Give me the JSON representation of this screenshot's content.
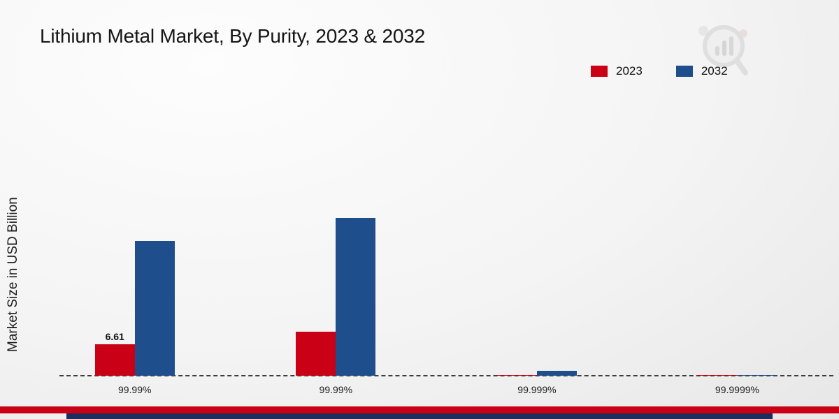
{
  "header": {
    "title": "Lithium Metal Market, By Purity, 2023 & 2032"
  },
  "legend": {
    "items": [
      {
        "label": "2023",
        "color": "#c90016"
      },
      {
        "label": "2032",
        "color": "#1f4e8c"
      }
    ]
  },
  "chart_data": {
    "type": "bar",
    "title": "Lithium Metal Market, By Purity, 2023 & 2032",
    "xlabel": "",
    "ylabel": "Market Size in USD Billion",
    "categories": [
      "99.99%",
      "99.99%",
      "99.999%",
      "99.9999%"
    ],
    "series": [
      {
        "name": "2023",
        "color": "#c90016",
        "values": [
          6.61,
          9.25,
          0.1,
          0.04
        ],
        "labels": [
          "6.61",
          "",
          "",
          ""
        ]
      },
      {
        "name": "2032",
        "color": "#1f4e8c",
        "values": [
          28.4,
          33.3,
          1.05,
          0.12
        ],
        "labels": [
          "",
          "",
          "",
          ""
        ]
      }
    ],
    "ylim": [
      0,
      35
    ],
    "grid": false,
    "legend_position": "top-right",
    "baseline_style": "dashed",
    "footer_bar_colors": [
      "#c90016",
      "#1d2d5c"
    ]
  }
}
